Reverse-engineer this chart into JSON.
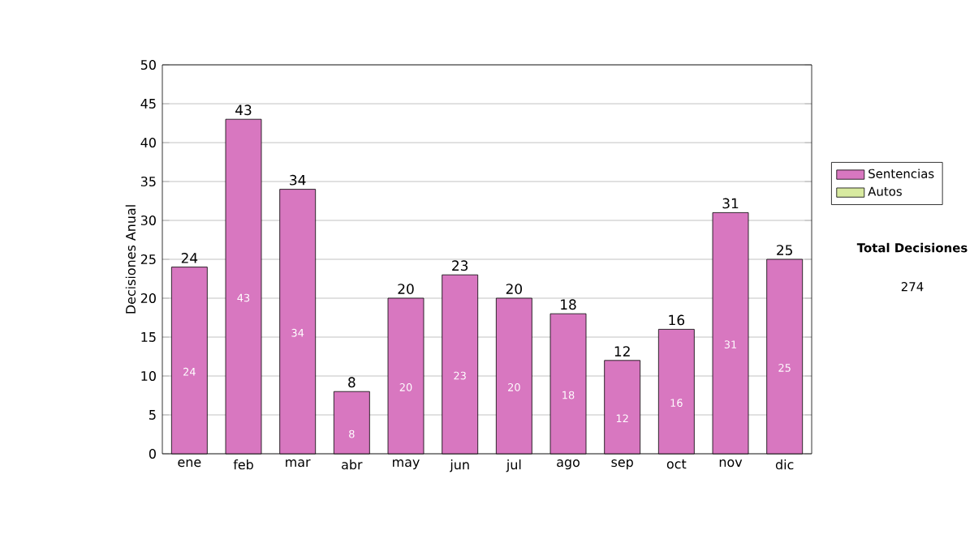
{
  "chart_data": {
    "type": "bar",
    "stacked": true,
    "ylabel": "Decisiones Anual",
    "categories": [
      "ene",
      "feb",
      "mar",
      "abr",
      "may",
      "jun",
      "jul",
      "ago",
      "sep",
      "oct",
      "nov",
      "dic"
    ],
    "series": [
      {
        "name": "Sentencias",
        "color": "#d877c0",
        "values": [
          24,
          43,
          34,
          8,
          20,
          23,
          20,
          18,
          12,
          16,
          31,
          25
        ],
        "value_labels": [
          "24",
          "43",
          "34",
          "8",
          "20",
          "23",
          "20",
          "18",
          "12",
          "16",
          "31",
          "25"
        ]
      },
      {
        "name": "Autos",
        "color": "#d8eaa0",
        "values": [
          0,
          0,
          0,
          0,
          0,
          0,
          0,
          0,
          0,
          0,
          0,
          0
        ]
      }
    ],
    "totals": [
      "24",
      "43",
      "34",
      "8",
      "20",
      "23",
      "20",
      "18",
      "12",
      "16",
      "31",
      "25"
    ],
    "ylim": [
      0,
      50
    ],
    "yticks": [
      0,
      5,
      10,
      15,
      20,
      25,
      30,
      35,
      40,
      45,
      50
    ],
    "grid": "y",
    "legend": "right",
    "annotations": [
      "**Total Decisiones**",
      "274"
    ]
  }
}
